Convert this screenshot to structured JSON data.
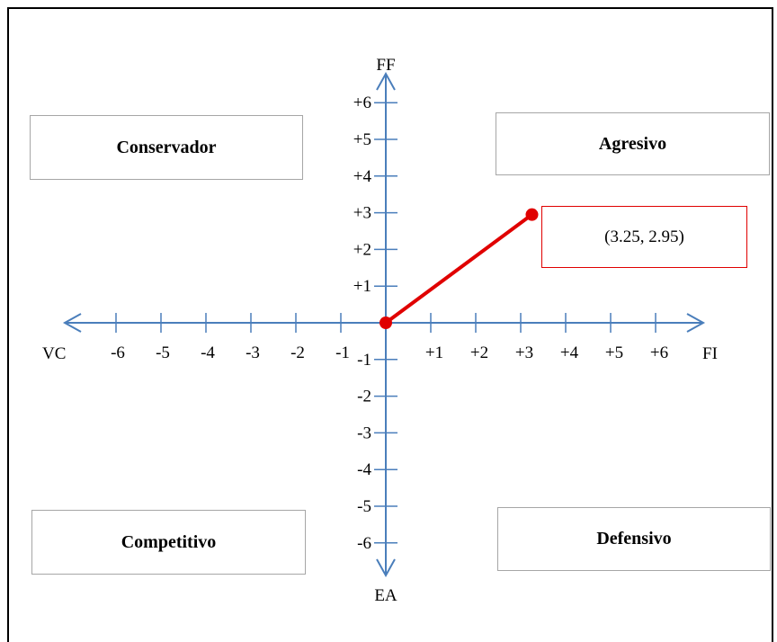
{
  "quadrants": {
    "top_left": "Conservador",
    "top_right": "Agresivo",
    "bottom_left": "Competitivo",
    "bottom_right": "Defensivo"
  },
  "axes": {
    "top": "FF",
    "bottom": "EA",
    "left": "VC",
    "right": "FI",
    "x_ticks_negative": [
      "-6",
      "-5",
      "-4",
      "-3",
      "-2",
      "-1"
    ],
    "x_ticks_positive": [
      "+1",
      "+2",
      "+3",
      "+4",
      "+5",
      "+6"
    ],
    "y_ticks_positive": [
      "+1",
      "+2",
      "+3",
      "+4",
      "+5",
      "+6"
    ],
    "y_ticks_negative": [
      "-1",
      "-2",
      "-3",
      "-4",
      "-5",
      "-6"
    ]
  },
  "point": {
    "x": 3.25,
    "y": 2.95,
    "label": "(3.25, 2.95)"
  },
  "colors": {
    "axis": "#4a7ebb",
    "vector": "#e00000",
    "box_border": "#a6a6a6"
  }
}
